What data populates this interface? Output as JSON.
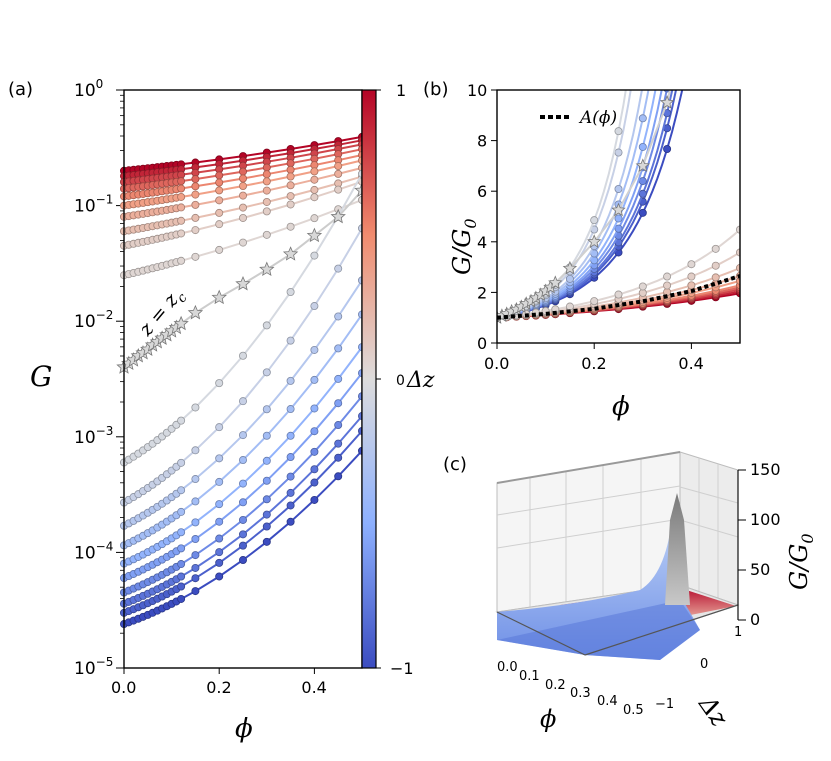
{
  "chart_data": [
    {
      "panel": "(a)",
      "type": "line",
      "ylabel": "G",
      "xlabel": "ϕ",
      "yscale": "log",
      "xlim": [
        0.0,
        0.5
      ],
      "ylim": [
        1e-05,
        1.0
      ],
      "x_ticks": [
        "0.0",
        "0.2",
        "0.4"
      ],
      "y_ticks": [
        "10^0",
        "10^-1",
        "10^-2",
        "10^-3",
        "10^-4",
        "10^-5"
      ],
      "y_tick_mantissa": "10",
      "y_tick_exponents": [
        "0",
        "−1",
        "−2",
        "−3",
        "−4",
        "−5"
      ],
      "annotation": "z = z_c",
      "annotation_main": "z = z",
      "annotation_sub": "c",
      "colorbar": {
        "label": "Δz",
        "ticks": [
          "1",
          "0",
          "−1"
        ],
        "range": [
          -1,
          1
        ]
      },
      "critical_series": {
        "dz": 0,
        "color": "#c0c0c0",
        "x": [
          0.0,
          0.01,
          0.02,
          0.03,
          0.04,
          0.05,
          0.06,
          0.07,
          0.08,
          0.09,
          0.1,
          0.11,
          0.12,
          0.15,
          0.2,
          0.25,
          0.3,
          0.35,
          0.4,
          0.45,
          0.5
        ],
        "G": [
          0.004,
          0.0043,
          0.0046,
          0.005,
          0.0053,
          0.0057,
          0.0062,
          0.0066,
          0.0071,
          0.0076,
          0.0082,
          0.0088,
          0.0095,
          0.0118,
          0.016,
          0.021,
          0.028,
          0.038,
          0.055,
          0.08,
          0.135
        ]
      },
      "x": [
        0.0,
        0.01,
        0.02,
        0.03,
        0.04,
        0.05,
        0.06,
        0.07,
        0.08,
        0.09,
        0.1,
        0.11,
        0.12,
        0.15,
        0.2,
        0.25,
        0.3,
        0.35,
        0.4,
        0.45,
        0.5
      ],
      "series": [
        {
          "dz": 1.0,
          "G0": 0.2,
          "k": 1.8
        },
        {
          "dz": 0.89,
          "G0": 0.18,
          "k": 1.9
        },
        {
          "dz": 0.78,
          "G0": 0.16,
          "k": 2.0
        },
        {
          "dz": 0.67,
          "G0": 0.14,
          "k": 2.1
        },
        {
          "dz": 0.56,
          "G0": 0.12,
          "k": 2.2
        },
        {
          "dz": 0.44,
          "G0": 0.1,
          "k": 2.4
        },
        {
          "dz": 0.33,
          "G0": 0.08,
          "k": 2.6
        },
        {
          "dz": 0.22,
          "G0": 0.06,
          "k": 2.9
        },
        {
          "dz": 0.11,
          "G0": 0.045,
          "k": 3.4
        },
        {
          "dz": 0.05,
          "G0": 0.025,
          "k": 4.0
        },
        {
          "dz": -0.05,
          "G0": 0.0006,
          "k": 10.0
        },
        {
          "dz": -0.14,
          "G0": 0.00027,
          "k": 9.5
        },
        {
          "dz": -0.25,
          "G0": 0.00017,
          "k": 8.5
        },
        {
          "dz": -0.36,
          "G0": 0.000115,
          "k": 8.0
        },
        {
          "dz": -0.47,
          "G0": 8e-05,
          "k": 7.5
        },
        {
          "dz": -0.58,
          "G0": 6e-05,
          "k": 7.1
        },
        {
          "dz": -0.69,
          "G0": 4.5e-05,
          "k": 6.8
        },
        {
          "dz": -0.8,
          "G0": 3.6e-05,
          "k": 6.5
        },
        {
          "dz": -0.9,
          "G0": 3e-05,
          "k": 6.3
        },
        {
          "dz": -1.0,
          "G0": 2.4e-05,
          "k": 6.0
        }
      ]
    },
    {
      "panel": "(b)",
      "type": "line",
      "ylabel": "G/G_0",
      "ylabel_main": "G/G",
      "ylabel_sub": "0",
      "xlabel": "ϕ",
      "xlim": [
        0.0,
        0.5
      ],
      "ylim": [
        0,
        10
      ],
      "x_ticks": [
        "0.0",
        "0.2",
        "0.4"
      ],
      "y_ticks": [
        "0",
        "2",
        "4",
        "6",
        "8",
        "10"
      ],
      "legend": [
        {
          "label": "A(ϕ)",
          "style": "dotted",
          "color": "#000000"
        }
      ],
      "legend_fn": "A(",
      "legend_arg": "ϕ",
      "legend_close": ")",
      "reference_curve": {
        "name": "A(ϕ)",
        "x": [
          0.0,
          0.1,
          0.2,
          0.3,
          0.4,
          0.5
        ],
        "y": [
          1.0,
          1.15,
          1.35,
          1.65,
          2.05,
          2.65
        ]
      }
    },
    {
      "panel": "(c)",
      "type": "surface3d",
      "zlabel": "G/G_0",
      "zlabel_main": "G/G",
      "zlabel_sub": "0",
      "xlabel": "ϕ",
      "ylabel": "Δz",
      "x_ticks": [
        "0.0",
        "0.1",
        "0.2",
        "0.3",
        "0.4",
        "0.5"
      ],
      "y_ticks": [
        "1",
        "0",
        "−1"
      ],
      "z_ticks": [
        "0",
        "50",
        "100",
        "150"
      ],
      "zlim": [
        0,
        150
      ]
    }
  ]
}
